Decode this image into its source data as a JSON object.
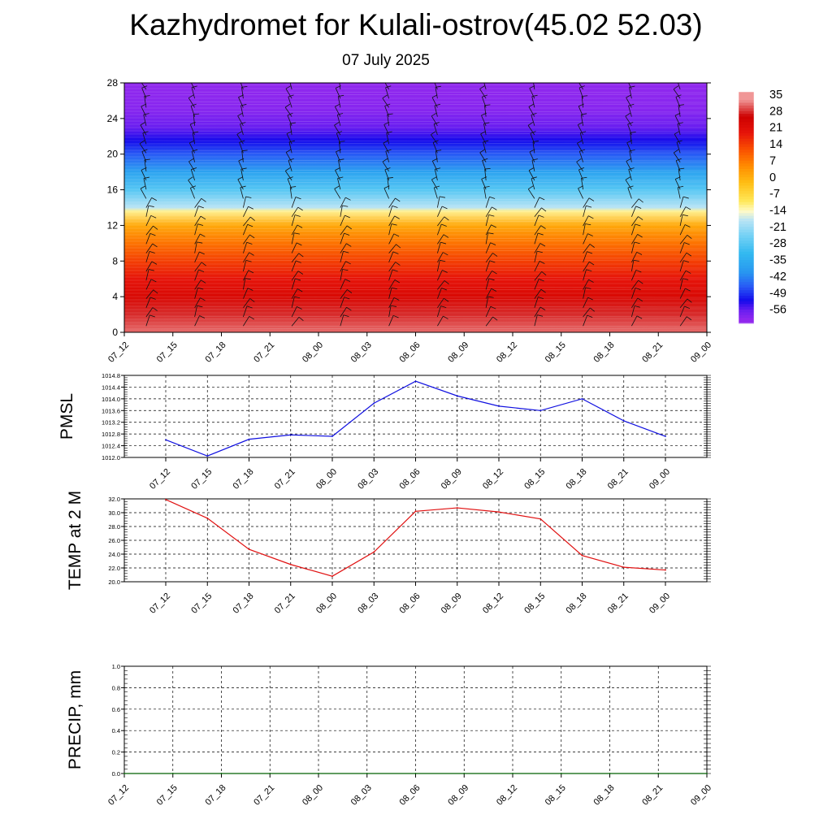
{
  "title": "Kazhydromet for Kulali-ostrov(45.02 52.03)",
  "subtitle": "07 July 2025",
  "colors": {
    "pmsl_line": "#1010e0",
    "temp_line": "#e01010",
    "precip_line": "#006000"
  },
  "colorbar": {
    "labels": [
      "35",
      "28",
      "21",
      "14",
      "7",
      "0",
      "-7",
      "-14",
      "-21",
      "-28",
      "-35",
      "-42",
      "-49",
      "-56"
    ]
  },
  "chart_data": [
    {
      "type": "heatmap",
      "title": "",
      "ylabel": "",
      "xlabel": "",
      "x_ticks": [
        "07_12",
        "07_15",
        "07_18",
        "07_21",
        "08_00",
        "08_03",
        "08_06",
        "08_09",
        "08_12",
        "08_15",
        "08_18",
        "08_21",
        "09_00"
      ],
      "y_ticks": [
        0,
        4,
        8,
        12,
        16,
        20,
        24,
        28
      ],
      "ylim": [
        0,
        28
      ],
      "overlay": "wind barbs",
      "profile": [
        {
          "y": 0,
          "value": 33
        },
        {
          "y": 2,
          "value": 30
        },
        {
          "y": 4,
          "value": 25
        },
        {
          "y": 6,
          "value": 21
        },
        {
          "y": 8,
          "value": 16
        },
        {
          "y": 10,
          "value": 10
        },
        {
          "y": 12,
          "value": 3
        },
        {
          "y": 13.6,
          "value": -10
        },
        {
          "y": 14,
          "value": -16
        },
        {
          "y": 16,
          "value": -26
        },
        {
          "y": 18,
          "value": -35
        },
        {
          "y": 20,
          "value": -44
        },
        {
          "y": 21.5,
          "value": -50
        },
        {
          "y": 23,
          "value": -54
        },
        {
          "y": 25,
          "value": -57
        },
        {
          "y": 28,
          "value": -58
        }
      ]
    },
    {
      "type": "line",
      "ylabel": "PMSL",
      "x": [
        "07_12",
        "07_15",
        "07_18",
        "07_21",
        "08_00",
        "08_03",
        "08_06",
        "08_09",
        "08_12",
        "08_15",
        "08_18",
        "08_21",
        "09_00"
      ],
      "y_ticks": [
        "1012.0",
        "1012.4",
        "1012.8",
        "1013.2",
        "1013.6",
        "1014.0",
        "1014.4",
        "1014.8"
      ],
      "ylim": [
        1012.0,
        1014.8
      ],
      "grid": true,
      "series": [
        {
          "values": [
            1012.6,
            1012.05,
            1012.62,
            1012.77,
            1012.72,
            1013.85,
            1014.6,
            1014.1,
            1013.75,
            1013.6,
            1014.0,
            1013.25,
            1012.72
          ]
        }
      ]
    },
    {
      "type": "line",
      "ylabel": "TEMP at 2 M",
      "x": [
        "07_12",
        "07_15",
        "07_18",
        "07_21",
        "08_00",
        "08_03",
        "08_06",
        "08_09",
        "08_12",
        "08_15",
        "08_18",
        "08_21",
        "09_00"
      ],
      "y_ticks": [
        "20.0",
        "22.0",
        "24.0",
        "26.0",
        "28.0",
        "30.0",
        "32.0"
      ],
      "ylim": [
        20.0,
        32.0
      ],
      "grid": true,
      "series": [
        {
          "values": [
            31.9,
            29.2,
            24.7,
            22.5,
            20.8,
            24.3,
            30.2,
            30.7,
            30.1,
            29.1,
            23.8,
            22.1,
            21.7
          ]
        }
      ]
    },
    {
      "type": "line",
      "ylabel": "PRECIP, mm",
      "x": [
        "07_12",
        "07_15",
        "07_18",
        "07_21",
        "08_00",
        "08_03",
        "08_06",
        "08_09",
        "08_12",
        "08_15",
        "08_18",
        "08_21",
        "09_00"
      ],
      "y_ticks": [
        "0.0",
        "0.2",
        "0.4",
        "0.6",
        "0.8",
        "1.0"
      ],
      "ylim": [
        0,
        1.0
      ],
      "grid": true,
      "series": [
        {
          "values": [
            0,
            0,
            0,
            0,
            0,
            0,
            0,
            0,
            0,
            0,
            0,
            0,
            0
          ]
        }
      ]
    }
  ]
}
